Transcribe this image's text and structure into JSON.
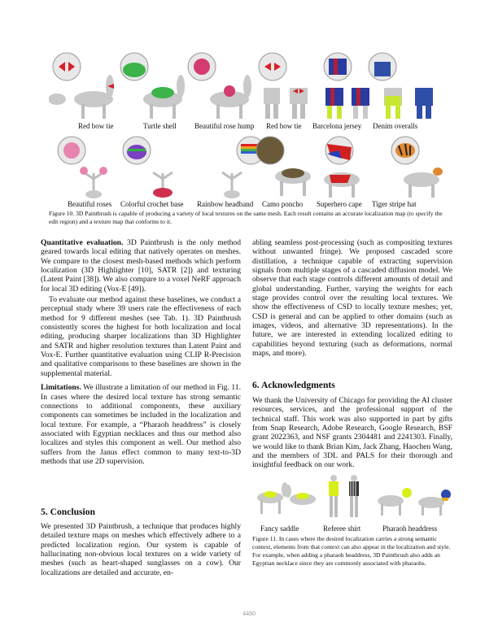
{
  "figure10": {
    "top_labels": [
      "Red bow tie",
      "Turtle shell",
      "Beautiful rose hump",
      "Red bow tie",
      "Barcelona jersey",
      "Denim overalls"
    ],
    "bottom_labels": [
      "Beautiful roses",
      "Colorful crochet base",
      "Rainbow headband",
      "Camo poncho",
      "Superhero cape",
      "Tiger stripe hat"
    ],
    "caption": "Figure 10. 3D Paintbrush is capable of producing a variety of local textures on the same mesh. Each result contains an accurate localization map (to specify the edit region) and a texture map that conforms to it."
  },
  "quant": {
    "heading": "Quantitative evaluation.",
    "p1_text": " 3D Paintbrush is the only method geared towards local editing that natively operates on meshes. We compare to the closest mesh-based methods which perform localization (3D Highlighter [10], SATR [2]) and texturing (Latent Paint [38]). We also compare to a voxel NeRF approach for local 3D editing (Vox-E [49]).",
    "p2_text": "To evaluate our method against these baselines, we conduct a perceptual study where 39 users rate the effectiveness of each method for 9 different meshes (see Tab. 1). 3D Paintbrush consistently scores the highest for both localization and local editing, producing sharper localizations than 3D Highlighter and SATR and higher resolution textures than Latent Paint and Vox-E. Further quantitative evaluation using CLIP R-Precision and qualitative comparisons to these baselines are shown in the supplemental material."
  },
  "limitations": {
    "heading": "Limitations.",
    "text": " We illustrate a limitation of our method in Fig. 11. In cases where the desired local texture has strong semantic connections to additional components, these auxiliary components can sometimes be included in the localization and local texture. For example, a “Pharaoh headdress” is closely associated with Egyptian necklaces and thus our method also localizes and styles this component as well. Our method also suffers from the Janus effect common to many text-to-3D methods that use 2D supervision."
  },
  "conclusion": {
    "heading": "5. Conclusion",
    "left_text": "We presented 3D Paintbrush, a technique that produces highly detailed texture maps on meshes which effectively adhere to a predicted localization region. Our system is capable of hallucinating non-obvious local textures on a wide variety of meshes (such as heart-shaped sunglasses on a cow). Our localizations are detailed and accurate, en-",
    "right_text": "abling seamless post-processing (such as compositing textures without unwanted fringe). We proposed cascaded score distillation, a technique capable of extracting supervision signals from multiple stages of a cascaded diffusion model. We observe that each stage controls different amounts of detail and global understanding. Further, varying the weights for each stage provides control over the resulting local textures. We show the effectiveness of CSD to locally texture meshes; yet, CSD is general and can be applied to other domains (such as images, videos, and alternative 3D representations). In the future, we are interested in extending localized editing to capabilities beyond texturing (such as deformations, normal maps, and more)."
  },
  "acknowledgments": {
    "heading": "6. Acknowledgments",
    "text": "We thank the University of Chicago for providing the AI cluster resources, services, and the professional support of the technical staff. This work was also supported in part by gifts from Snap Research, Adobe Research, Google Research, BSF grant 2022363, and NSF grants 2304481 and 2241303. Finally, we would like to thank Brian Kim, Jack Zhang, Haochen Wang, and the members of 3DL and PALS for their thorough and insightful feedback on our work."
  },
  "figure11": {
    "labels": [
      "Fancy saddle",
      "Referee shirt",
      "Pharaoh headdress"
    ],
    "caption": "Figure 11. In cases where the desired localization carries a strong semantic context, elements from that context can also appear in the localization and style. For example, when adding a pharaoh headdress, 3D Paintbrush also adds an Egyptian necklace since they are commonly associated with pharaohs."
  },
  "page_number": "4480",
  "colors": {
    "link": "#d00000",
    "mesh_gray": "#c8c8c8",
    "highlight_yellow": "#d8f018"
  }
}
